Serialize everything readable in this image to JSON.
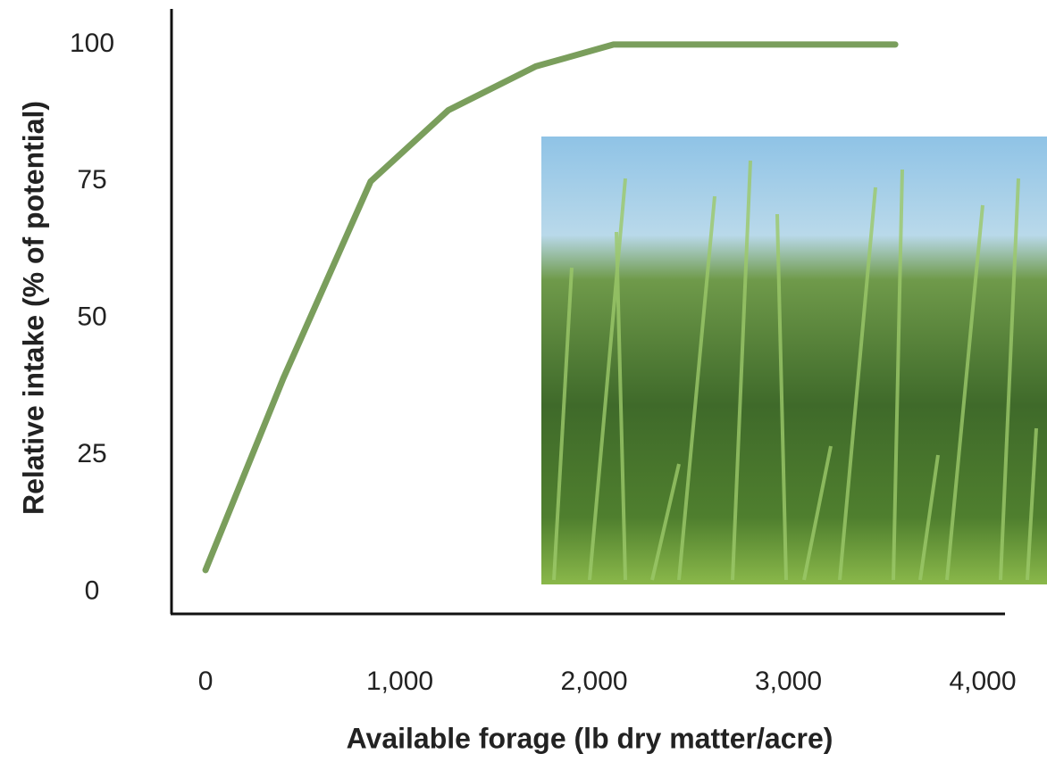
{
  "chart_data": {
    "type": "line",
    "x_label": "Available forage (lb dry matter/acre)",
    "y_label": "Relative intake (% of potential)",
    "x": [
      0,
      400,
      850,
      1250,
      1700,
      2100,
      3550
    ],
    "series": [
      {
        "name": "Relative intake",
        "color": "#7a9e5c",
        "values": [
          4,
          39,
          75,
          88,
          96,
          100,
          100
        ]
      }
    ],
    "xlim": [
      -175,
      4115
    ],
    "ylim": [
      -4,
      106.5
    ],
    "xticks": [
      0,
      {
        "value": 1000,
        "label": "1,000"
      },
      {
        "value": 2000,
        "label": "2,000"
      },
      {
        "value": 3000,
        "label": "3,000"
      },
      {
        "value": 4000,
        "label": "4,000"
      }
    ],
    "yticks": [
      0,
      25,
      50,
      75,
      100
    ],
    "grid": false,
    "legend": false
  }
}
